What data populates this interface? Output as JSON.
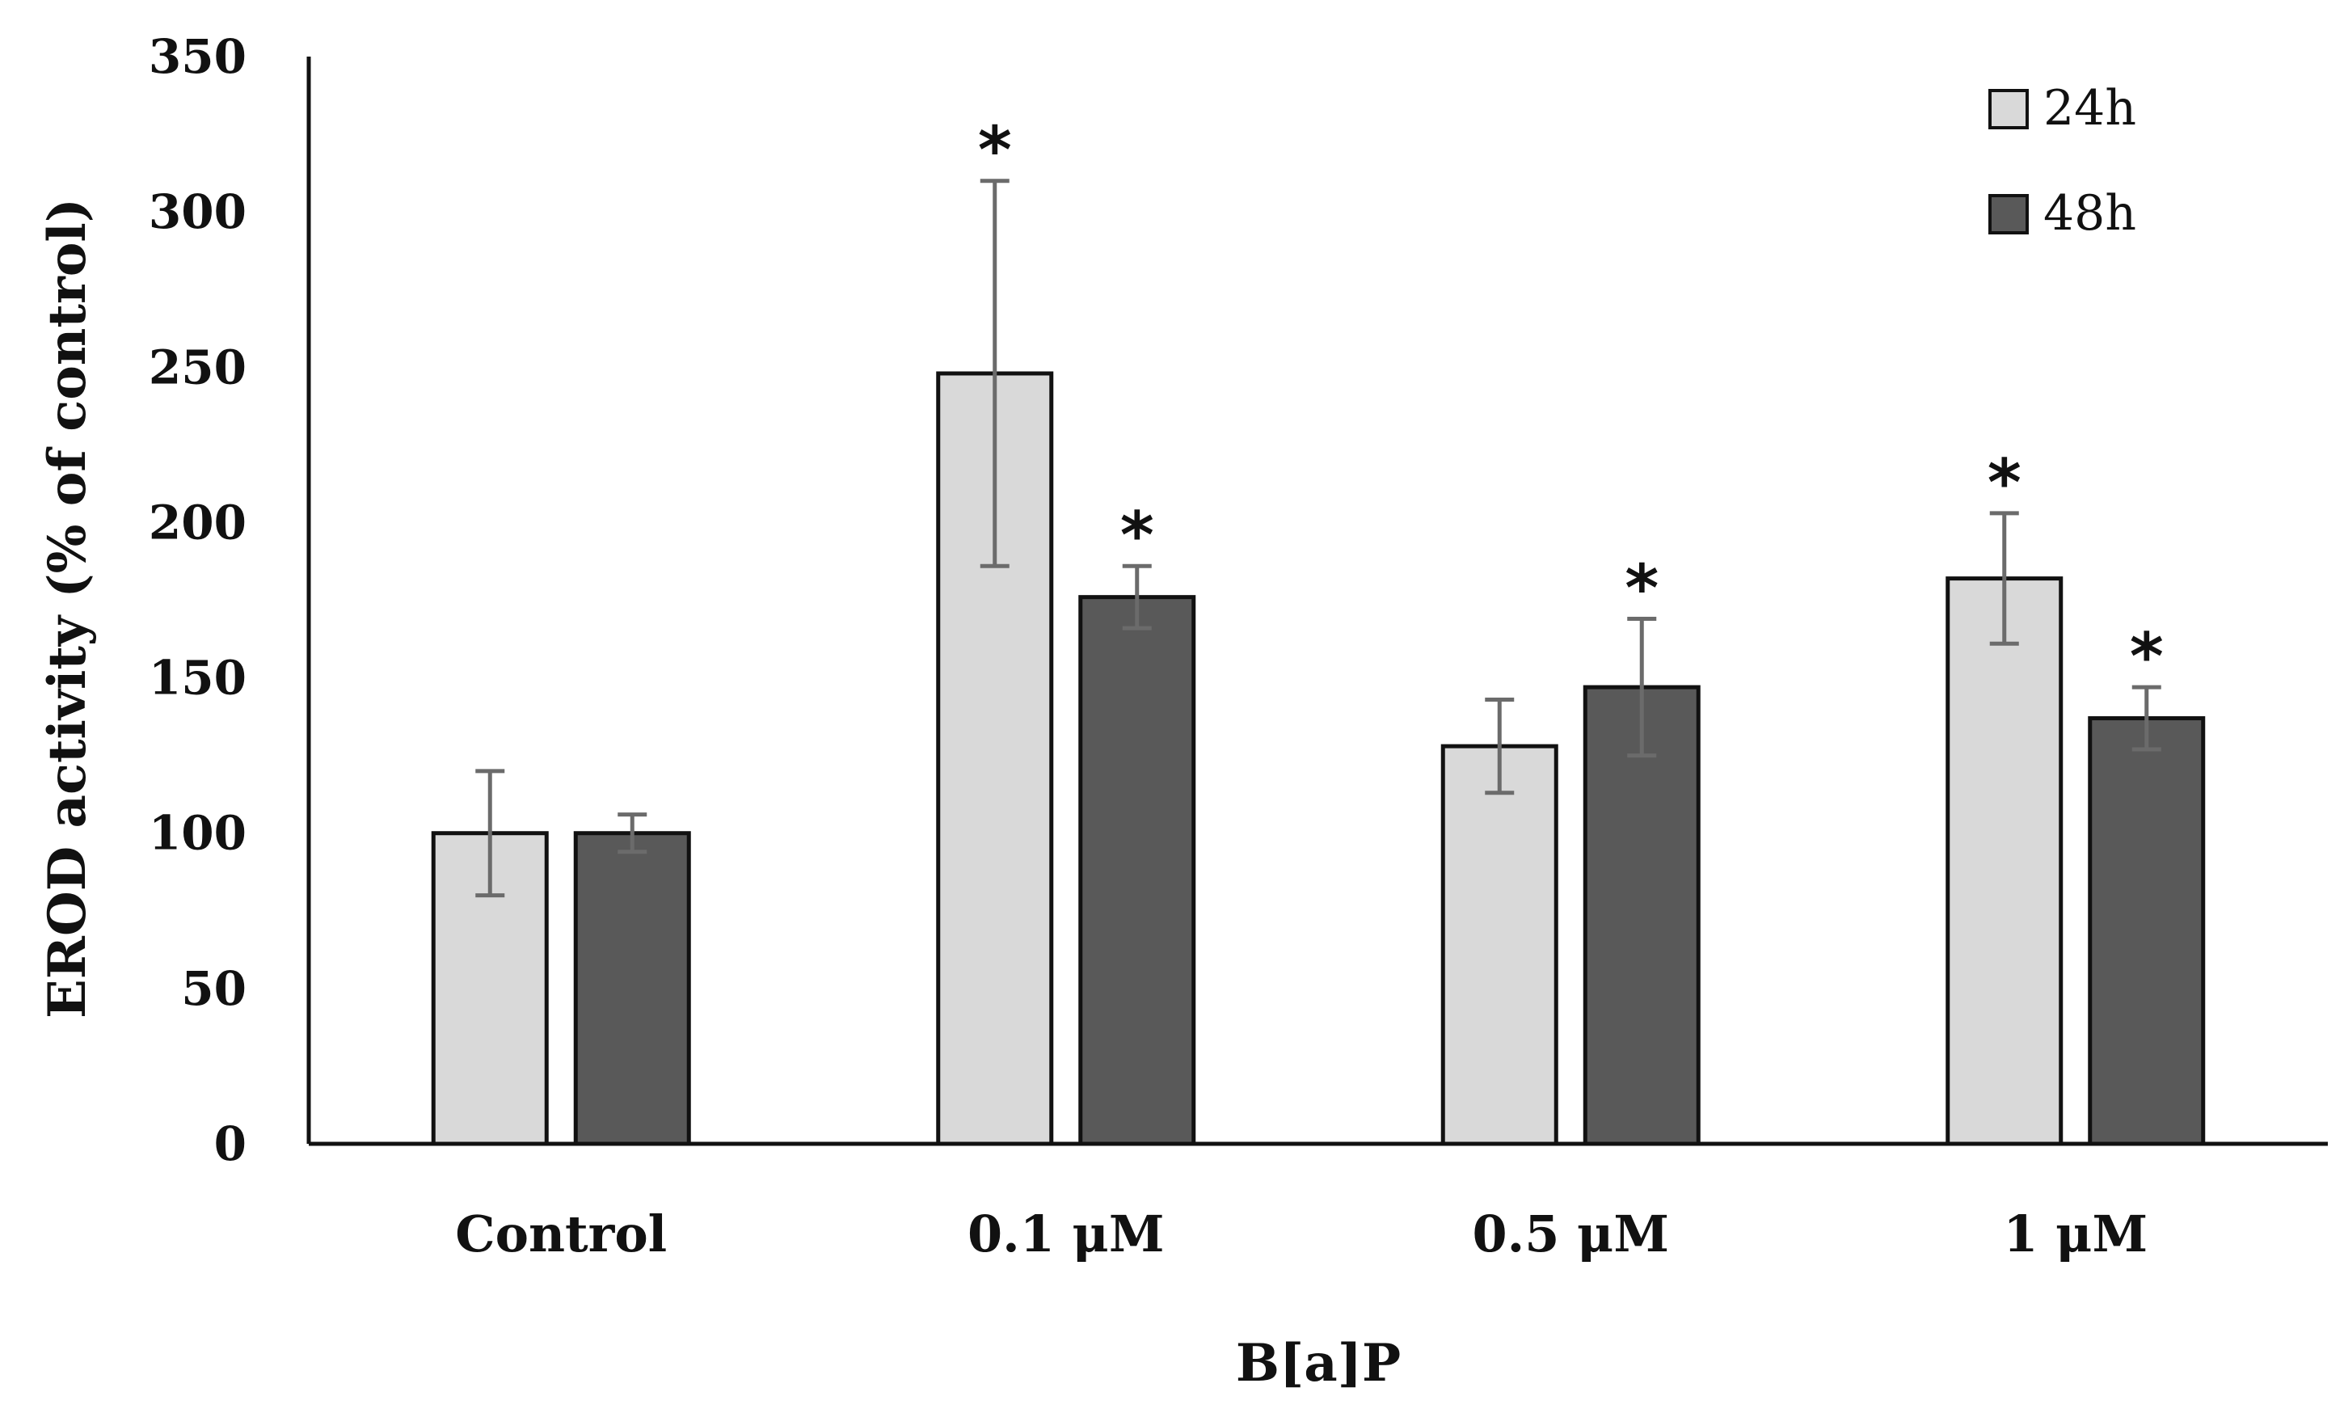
{
  "chart_data": {
    "type": "bar",
    "title": "",
    "xlabel": "B[a]P",
    "ylabel": "EROD activity (% of control)",
    "ylim": [
      0,
      350
    ],
    "yticks": [
      0,
      50,
      100,
      150,
      200,
      250,
      300,
      350
    ],
    "grid": false,
    "legend_position": "top-right",
    "categories": [
      "Control",
      "0.1 μM",
      "0.5 μM",
      "1 μM"
    ],
    "series": [
      {
        "name": "24h",
        "color": "#d9d9d9",
        "values": [
          100,
          248,
          128,
          182
        ],
        "errors": [
          20,
          62,
          15,
          21
        ],
        "significant": [
          false,
          true,
          false,
          true
        ]
      },
      {
        "name": "48h",
        "color": "#595959",
        "values": [
          100,
          176,
          147,
          137
        ],
        "errors": [
          6,
          10,
          22,
          10
        ],
        "significant": [
          false,
          true,
          true,
          true
        ]
      }
    ],
    "significance_marker": "*"
  }
}
